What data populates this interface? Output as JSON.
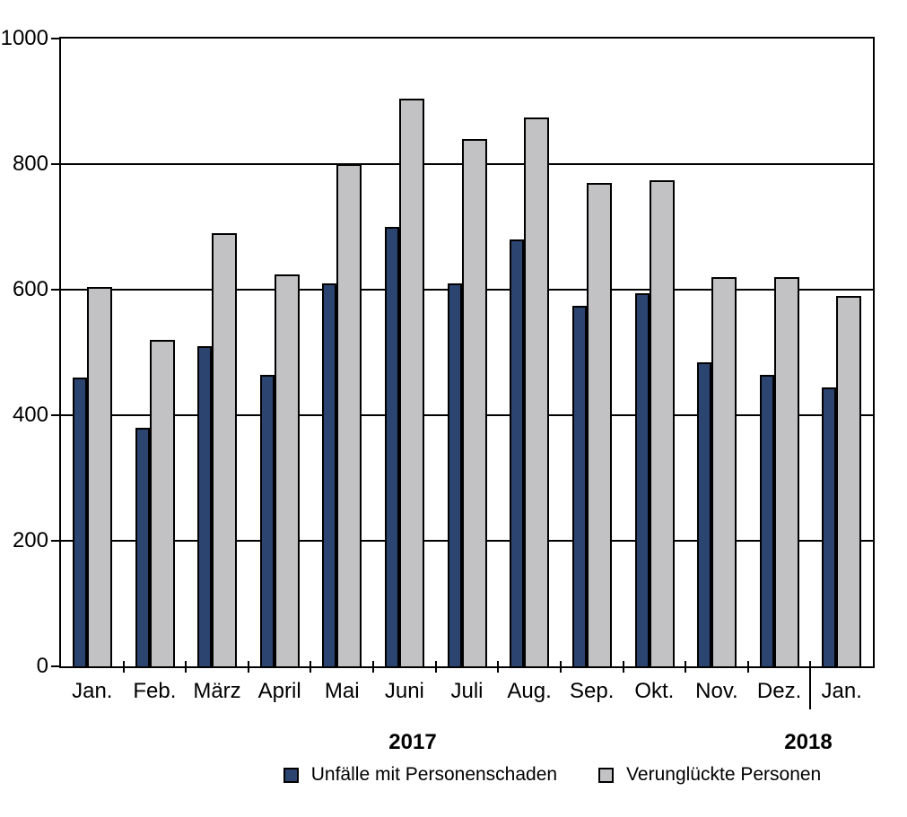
{
  "chart_data": {
    "type": "bar",
    "title": "",
    "xlabel": "",
    "ylabel": "",
    "categories": [
      "Jan.",
      "Feb.",
      "März",
      "April",
      "Mai",
      "Juni",
      "Juli",
      "Aug.",
      "Sep.",
      "Okt.",
      "Nov.",
      "Dez.",
      "Jan."
    ],
    "year_groups": [
      {
        "label": "2017",
        "months": 12
      },
      {
        "label": "2018",
        "months": 1
      }
    ],
    "series": [
      {
        "name": "Unfälle mit Personenschaden",
        "color": "#2b4470",
        "values": [
          460,
          380,
          510,
          465,
          610,
          700,
          610,
          680,
          575,
          595,
          485,
          465,
          445
        ]
      },
      {
        "name": "Verunglückte Personen",
        "color": "#c2c2c4",
        "values": [
          605,
          520,
          690,
          625,
          800,
          905,
          840,
          875,
          770,
          775,
          620,
          620,
          590
        ]
      }
    ],
    "ylim": [
      0,
      1000
    ],
    "yticks": [
      0,
      200,
      400,
      600,
      800,
      1000
    ],
    "grid": true,
    "legend_position": "bottom",
    "bar_border_color": "#000000"
  }
}
